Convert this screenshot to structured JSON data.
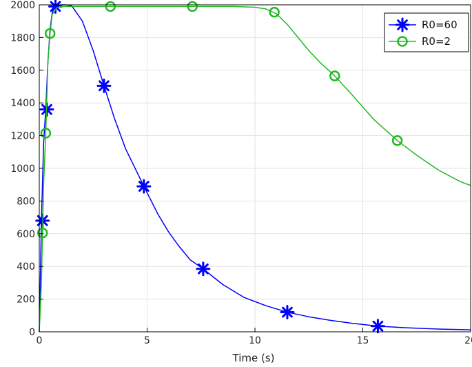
{
  "chart_data": {
    "type": "line",
    "title": "",
    "xlabel": "Time (s)",
    "ylabel": "",
    "xlim": [
      0,
      20
    ],
    "ylim": [
      0,
      2000
    ],
    "xticks": [
      0,
      5,
      10,
      15,
      20
    ],
    "yticks": [
      0,
      200,
      400,
      600,
      800,
      1000,
      1200,
      1400,
      1600,
      1800,
      2000
    ],
    "grid": true,
    "legend_position": "top-right",
    "series": [
      {
        "name": "R0=60",
        "color": "#0000ff",
        "marker": "asterisk",
        "x": [
          0,
          0.1,
          0.2,
          0.3,
          0.4,
          0.5,
          0.6,
          0.7,
          0.8,
          1.0,
          1.2,
          1.5,
          2.0,
          2.5,
          3.0,
          3.5,
          4.0,
          4.85,
          5.5,
          6.0,
          6.5,
          7.0,
          7.6,
          8.5,
          9.5,
          10.5,
          11.5,
          12.5,
          13.5,
          14.5,
          15.7,
          17.0,
          18.5,
          20.0
        ],
        "y": [
          0,
          680,
          1150,
          1360,
          1650,
          1850,
          1950,
          1985,
          1995,
          2000,
          2000,
          1995,
          1900,
          1720,
          1505,
          1300,
          1120,
          890,
          720,
          610,
          520,
          440,
          385,
          290,
          210,
          160,
          120,
          92,
          70,
          52,
          35,
          25,
          17,
          12
        ],
        "marker_points": [
          [
            0.15,
            680
          ],
          [
            0.35,
            1360
          ],
          [
            0.75,
            1990
          ],
          [
            3.0,
            1505
          ],
          [
            4.85,
            890
          ],
          [
            7.6,
            385
          ],
          [
            11.5,
            120
          ],
          [
            15.7,
            35
          ]
        ]
      },
      {
        "name": "R0=2",
        "color": "#22b822",
        "marker": "circle",
        "x": [
          0,
          0.1,
          0.15,
          0.2,
          0.3,
          0.4,
          0.5,
          0.6,
          0.8,
          1.0,
          2.0,
          3.0,
          4.0,
          5.0,
          6.0,
          7.0,
          8.0,
          9.0,
          10.0,
          10.5,
          11.0,
          11.5,
          12.0,
          12.5,
          13.0,
          13.7,
          14.5,
          15.5,
          16.6,
          17.5,
          18.5,
          19.5,
          20.0
        ],
        "y": [
          0,
          300,
          605,
          900,
          1215,
          1650,
          1825,
          1940,
          1980,
          1990,
          1990,
          1990,
          1990,
          1990,
          1990,
          1990,
          1990,
          1990,
          1985,
          1975,
          1945,
          1880,
          1800,
          1720,
          1650,
          1565,
          1450,
          1300,
          1170,
          1080,
          990,
          920,
          895
        ],
        "marker_points": [
          [
            0.15,
            605
          ],
          [
            0.3,
            1215
          ],
          [
            0.5,
            1825
          ],
          [
            3.3,
            1990
          ],
          [
            7.1,
            1990
          ],
          [
            10.9,
            1955
          ],
          [
            13.7,
            1565
          ],
          [
            16.6,
            1170
          ]
        ]
      }
    ]
  }
}
